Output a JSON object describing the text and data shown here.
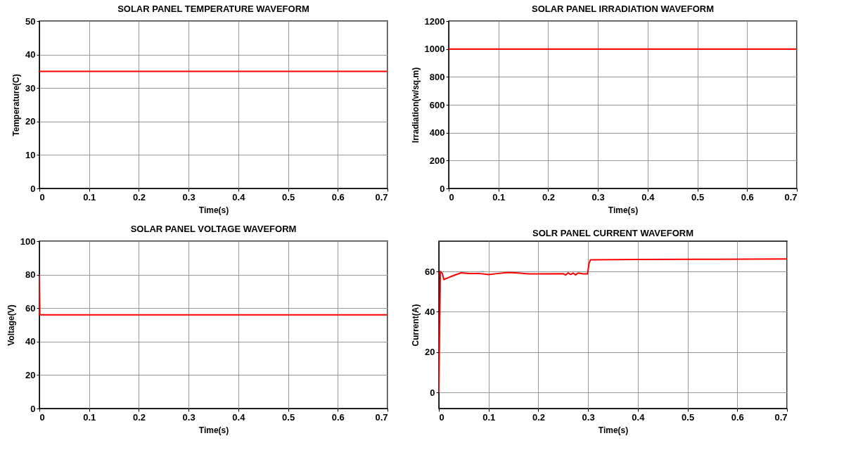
{
  "chart_data": [
    {
      "type": "line",
      "title": "SOLAR PANEL TEMPERATURE WAVEFORM",
      "xlabel": "Time(s)",
      "ylabel": "Temperature(C)",
      "x": [
        0,
        0.7
      ],
      "series": [
        {
          "color": "#ff0000",
          "values": [
            35,
            35
          ]
        }
      ],
      "xlim": [
        0,
        0.7
      ],
      "xticks": [
        0,
        0.1,
        0.2,
        0.3,
        0.4,
        0.5,
        0.6,
        0.7
      ],
      "ylim": [
        0,
        50
      ],
      "yticks": [
        0,
        10,
        20,
        30,
        40,
        50
      ],
      "grid": true,
      "line_style": "solid"
    },
    {
      "type": "line",
      "title": "SOLAR PANEL IRRADIATION WAVEFORM",
      "xlabel": "Time(s)",
      "ylabel": "Irradiation(w/sq.m)",
      "x": [
        0,
        0.7
      ],
      "series": [
        {
          "color": "#ff0000",
          "values": [
            1000,
            1000
          ]
        }
      ],
      "xlim": [
        0,
        0.7
      ],
      "xticks": [
        0,
        0.1,
        0.2,
        0.3,
        0.4,
        0.5,
        0.6,
        0.7
      ],
      "ylim": [
        0,
        1200
      ],
      "yticks": [
        0,
        200,
        400,
        600,
        800,
        1000,
        1200
      ],
      "grid": true,
      "line_style": "solid"
    },
    {
      "type": "line",
      "title": "SOLAR PANEL VOLTAGE WAVEFORM",
      "xlabel": "Time(s)",
      "ylabel": "Voltage(V)",
      "x": [
        0,
        0.001,
        0.7
      ],
      "series": [
        {
          "color": "#ff0000",
          "values": [
            80,
            56,
            56
          ]
        }
      ],
      "xlim": [
        0,
        0.7
      ],
      "xticks": [
        0,
        0.1,
        0.2,
        0.3,
        0.4,
        0.5,
        0.6,
        0.7
      ],
      "ylim": [
        0,
        100
      ],
      "yticks": [
        0,
        20,
        40,
        60,
        80,
        100
      ],
      "grid": true,
      "line_style": "solid"
    },
    {
      "type": "line",
      "title": "SOLR PANEL CURRENT WAVEFORM",
      "xlabel": "Time(s)",
      "ylabel": "Current(A)",
      "x": [
        0,
        0.003,
        0.007,
        0.01,
        0.02,
        0.03,
        0.045,
        0.06,
        0.08,
        0.1,
        0.12,
        0.14,
        0.16,
        0.18,
        0.2,
        0.25,
        0.255,
        0.26,
        0.265,
        0.27,
        0.275,
        0.28,
        0.29,
        0.299,
        0.302,
        0.305,
        0.4,
        0.5,
        0.7
      ],
      "series": [
        {
          "color": "#ff0000",
          "values": [
            0,
            60,
            59,
            56,
            57,
            58,
            59.3,
            59,
            59,
            58.4,
            59,
            59.5,
            59.2,
            58.8,
            58.8,
            58.9,
            58.2,
            59.3,
            58.5,
            59.2,
            58.3,
            59.2,
            58.8,
            58.8,
            64,
            65.8,
            65.9,
            66,
            66.2
          ]
        }
      ],
      "xlim": [
        0,
        0.7
      ],
      "xticks": [
        0,
        0.1,
        0.2,
        0.3,
        0.4,
        0.5,
        0.6,
        0.7
      ],
      "ylim": [
        -8,
        75
      ],
      "yticks": [
        0,
        20,
        40,
        60
      ],
      "grid": true,
      "line_style": "solid"
    }
  ]
}
